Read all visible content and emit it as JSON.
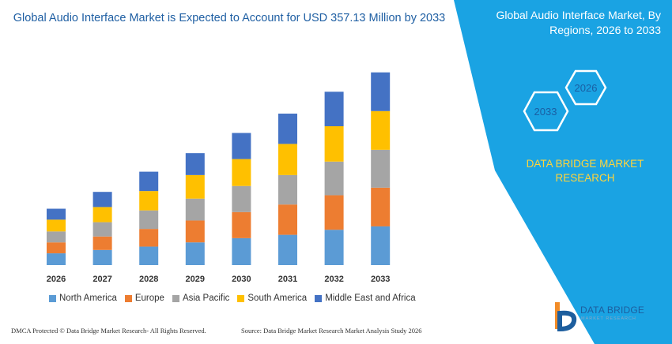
{
  "title": "Global Audio Interface Market is Expected to Account for USD 357.13 Million by 2033",
  "right_panel": {
    "title": "Global Audio Interface Market, By Regions, 2026 to 2033",
    "hex_start": "2033",
    "hex_end": "2026",
    "brand_text": "DATA BRIDGE MARKET RESEARCH"
  },
  "footer": {
    "left": "DMCA Protected © Data Bridge Market Research- All Rights Reserved.",
    "right": "Source: Data Bridge Market Research  Market Analysis Study 2026"
  },
  "logo": {
    "name": "DATA BRIDGE",
    "sub": "MARKET RESEARCH"
  },
  "colors": {
    "panel": "#1aa3e3",
    "North America": "#5b9bd5",
    "Europe": "#ed7d31",
    "Asia Pacific": "#a5a5a5",
    "South America": "#ffc000",
    "Middle East and Africa": "#4472c4"
  },
  "chart_data": {
    "type": "bar",
    "stacked": true,
    "title": "Global Audio Interface Market is Expected to Account for USD 357.13 Million by 2033",
    "xlabel": "",
    "ylabel": "",
    "categories": [
      "2026",
      "2027",
      "2028",
      "2029",
      "2030",
      "2031",
      "2032",
      "2033"
    ],
    "series": [
      {
        "name": "North America",
        "values": [
          14,
          18,
          22,
          27,
          32,
          36,
          42,
          46
        ]
      },
      {
        "name": "Europe",
        "values": [
          13,
          16,
          21,
          26,
          31,
          36,
          41,
          46
        ]
      },
      {
        "name": "Asia Pacific",
        "values": [
          13,
          17,
          22,
          26,
          31,
          35,
          40,
          45
        ]
      },
      {
        "name": "South America",
        "values": [
          14,
          18,
          23,
          28,
          32,
          37,
          42,
          46
        ]
      },
      {
        "name": "Middle East and Africa",
        "values": [
          13,
          18,
          23,
          26,
          31,
          36,
          41,
          46
        ]
      }
    ],
    "ylim": [
      0,
      240
    ],
    "legend_position": "bottom",
    "grid": false
  }
}
